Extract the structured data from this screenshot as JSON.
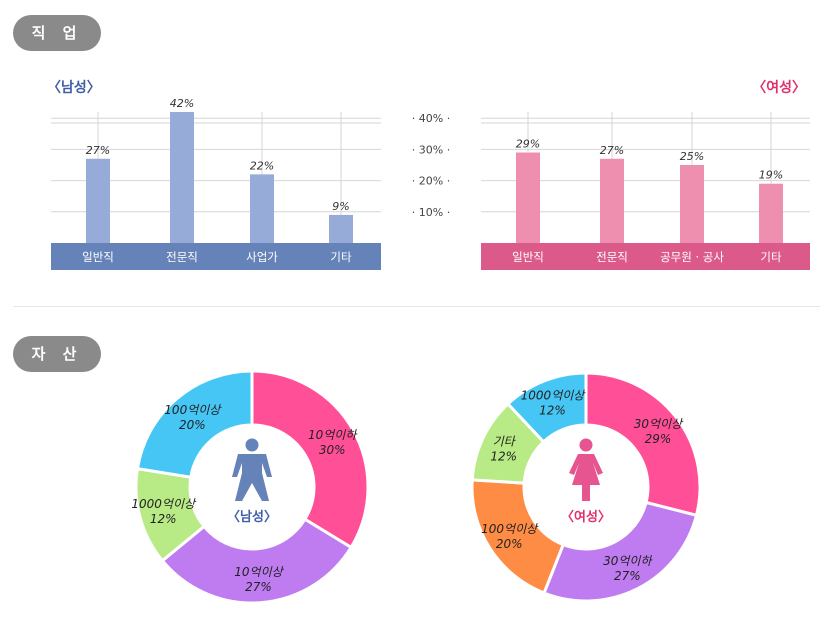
{
  "sections": {
    "job_label": "직 업",
    "asset_label": "자 산"
  },
  "colors": {
    "male_bar": "#97abd8",
    "male_axis": "#6583b8",
    "female_bar": "#ee8fb0",
    "female_axis": "#dc5a8a",
    "male_header": "#3f5ea8",
    "female_header": "#e0306e",
    "donut_pink": "#ff4f97",
    "donut_purple": "#bf7bf0",
    "donut_green": "#b8ea86",
    "donut_blue": "#45c6f5",
    "donut_orange": "#ff8c45"
  },
  "chart_data": [
    {
      "type": "bar",
      "title": "〈남성〉",
      "categories": [
        "일반직",
        "전문직",
        "사업가",
        "기타"
      ],
      "values": [
        27,
        42,
        22,
        9
      ],
      "value_labels": [
        "27%",
        "42%",
        "22%",
        "9%"
      ],
      "ylim": [
        0,
        42
      ],
      "grid": true
    },
    {
      "type": "bar",
      "title": "〈여성〉",
      "categories": [
        "일반직",
        "전문직",
        "공무원 · 공사",
        "기타"
      ],
      "values": [
        29,
        27,
        25,
        19
      ],
      "value_labels": [
        "29%",
        "27%",
        "25%",
        "19%"
      ],
      "ylim": [
        0,
        42
      ],
      "grid": true
    },
    {
      "type": "pie",
      "center_label": "〈남성〉",
      "slices": [
        {
          "label": "10억이하",
          "value": 30,
          "value_label": "30%",
          "color": "#ff4f97"
        },
        {
          "label": "10억이상",
          "value": 27,
          "value_label": "27%",
          "color": "#bf7bf0"
        },
        {
          "label": "1000억이상",
          "value": 12,
          "value_label": "12%",
          "color": "#b8ea86"
        },
        {
          "label": "100억이상",
          "value": 20,
          "value_label": "20%",
          "color": "#45c6f5"
        }
      ]
    },
    {
      "type": "pie",
      "center_label": "〈여성〉",
      "slices": [
        {
          "label": "30억이상",
          "value": 29,
          "value_label": "29%",
          "color": "#ff4f97"
        },
        {
          "label": "30억이하",
          "value": 27,
          "value_label": "27%",
          "color": "#bf7bf0"
        },
        {
          "label": "100억이상",
          "value": 20,
          "value_label": "20%",
          "color": "#ff8c45"
        },
        {
          "label": "기타",
          "value": 12,
          "value_label": "12%",
          "color": "#b8ea86"
        },
        {
          "label": "1000억이상",
          "value": 12,
          "value_label": "12%",
          "color": "#45c6f5"
        }
      ]
    }
  ],
  "shared_axis": {
    "ticks": [
      10,
      20,
      30,
      40
    ],
    "tick_labels": [
      "· 10% ·",
      "· 20% ·",
      "· 30% ·",
      "· 40% ·"
    ]
  }
}
